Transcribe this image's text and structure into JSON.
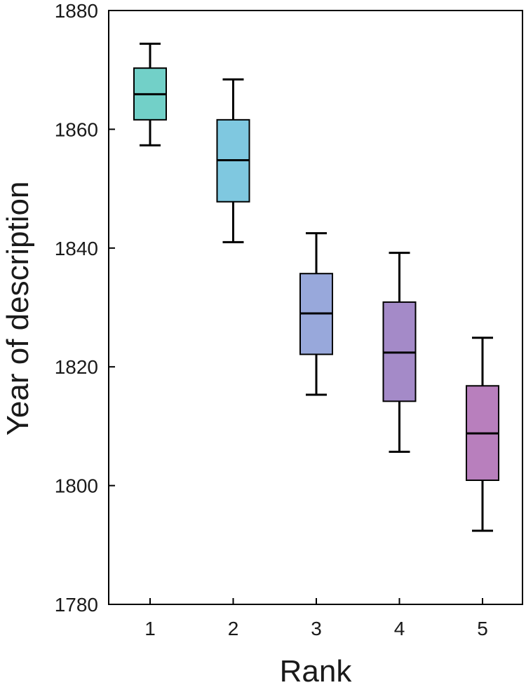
{
  "chart_data": {
    "type": "box",
    "title": "",
    "xlabel": "Rank",
    "ylabel": "Year of description",
    "ylim": [
      1780,
      1880
    ],
    "yticks": [
      1780,
      1800,
      1820,
      1840,
      1860,
      1880
    ],
    "grid": false,
    "legend": "none",
    "categories": [
      "1",
      "2",
      "3",
      "4",
      "5"
    ],
    "boxes": [
      {
        "category": "1",
        "whisker_low": 1857.3,
        "q1": 1861.6,
        "median": 1865.9,
        "q3": 1870.3,
        "whisker_high": 1874.4,
        "color": "#72d0c8"
      },
      {
        "category": "2",
        "whisker_low": 1841.0,
        "q1": 1847.8,
        "median": 1854.8,
        "q3": 1861.6,
        "whisker_high": 1868.4,
        "color": "#7fc8e0"
      },
      {
        "category": "3",
        "whisker_low": 1815.3,
        "q1": 1822.1,
        "median": 1829.0,
        "q3": 1835.7,
        "whisker_high": 1842.5,
        "color": "#98a8db"
      },
      {
        "category": "4",
        "whisker_low": 1805.7,
        "q1": 1814.2,
        "median": 1822.4,
        "q3": 1830.9,
        "whisker_high": 1839.2,
        "color": "#a48ac8"
      },
      {
        "category": "5",
        "whisker_low": 1792.4,
        "q1": 1800.9,
        "median": 1808.8,
        "q3": 1816.8,
        "whisker_high": 1824.9,
        "color": "#b87fbd"
      }
    ]
  }
}
